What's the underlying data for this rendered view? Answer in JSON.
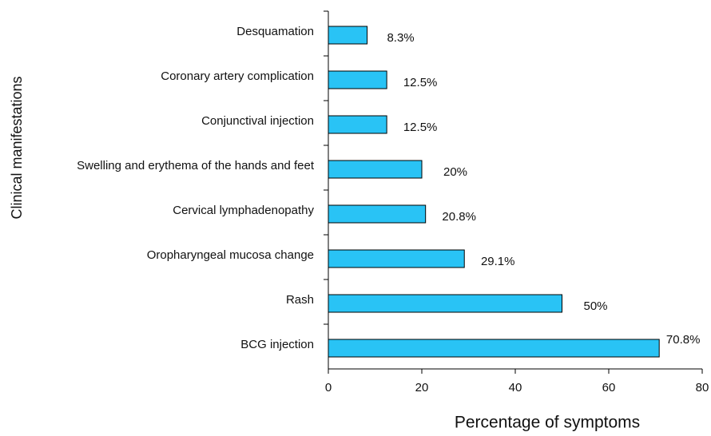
{
  "chart_data": {
    "type": "bar",
    "orientation": "horizontal",
    "categories": [
      "Desquamation",
      "Coronary artery complication",
      "Conjunctival injection",
      "Swelling and erythema of the hands and feet",
      "Cervical lymphadenopathy",
      "Oropharyngeal mucosa change",
      "Rash",
      "BCG injection"
    ],
    "values": [
      8.3,
      12.5,
      12.5,
      20,
      20.8,
      29.1,
      50,
      70.8
    ],
    "value_labels": [
      "8.3%",
      "12.5%",
      "12.5%",
      "20%",
      "20.8%",
      "29.1%",
      "50%",
      "70.8%"
    ],
    "color": "#29c3f5",
    "xlim": [
      0,
      80
    ],
    "xticks": [
      0,
      20,
      40,
      60,
      80
    ],
    "xlabel": "Percentage of symptoms",
    "ylabel": "Clinical manifestations"
  }
}
